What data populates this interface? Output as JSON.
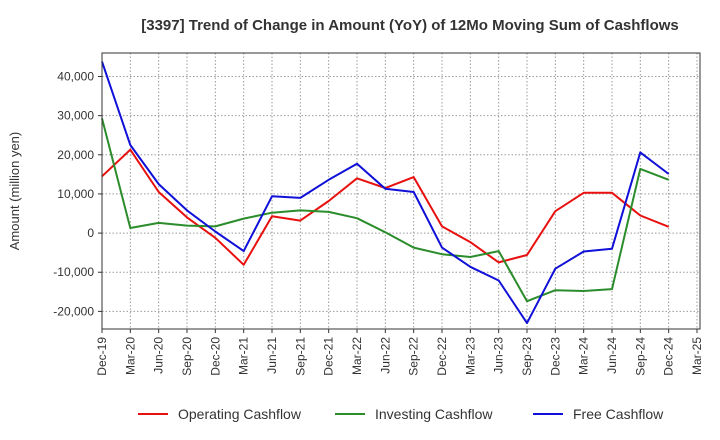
{
  "chart_data": {
    "type": "line",
    "title": "[3397]  Trend of Change in Amount (YoY) of 12Mo Moving Sum of Cashflows",
    "ylabel": "Amount (million yen)",
    "xlabel": "",
    "ylim": [
      -24500,
      46000
    ],
    "yticks": [
      -20000,
      -10000,
      0,
      10000,
      20000,
      30000,
      40000
    ],
    "ytick_labels": [
      "-20,000",
      "-10,000",
      "0",
      "10,000",
      "20,000",
      "30,000",
      "40,000"
    ],
    "categories": [
      "Dec-19",
      "Mar-20",
      "Jun-20",
      "Sep-20",
      "Dec-20",
      "Mar-21",
      "Jun-21",
      "Sep-21",
      "Dec-21",
      "Mar-22",
      "Jun-22",
      "Sep-22",
      "Dec-22",
      "Mar-23",
      "Jun-23",
      "Sep-23",
      "Dec-23",
      "Mar-24",
      "Jun-24",
      "Sep-24",
      "Dec-24",
      "Mar-25"
    ],
    "grid": true,
    "legend_position": "bottom",
    "series": [
      {
        "name": "Operating Cashflow",
        "color": "#e8100f",
        "values": [
          14500,
          21300,
          10500,
          4000,
          -1200,
          -8100,
          4300,
          3200,
          8200,
          14000,
          11500,
          14300,
          1700,
          -2300,
          -7500,
          -5600,
          5600,
          10300,
          10300,
          4500,
          1600,
          null
        ]
      },
      {
        "name": "Investing Cashflow",
        "color": "#2b8c2b",
        "values": [
          29300,
          1300,
          2600,
          1900,
          1700,
          3700,
          5200,
          5800,
          5400,
          3800,
          200,
          -3700,
          -5400,
          -6100,
          -4600,
          -17400,
          -14600,
          -14800,
          -14300,
          16400,
          13600,
          null
        ]
      },
      {
        "name": "Free Cashflow",
        "color": "#1010d8",
        "values": [
          43800,
          22500,
          12500,
          5800,
          400,
          -4600,
          9400,
          9000,
          13600,
          17700,
          11300,
          10500,
          -3700,
          -8600,
          -12100,
          -23000,
          -9100,
          -4700,
          -4000,
          20600,
          15100,
          null
        ]
      }
    ]
  }
}
